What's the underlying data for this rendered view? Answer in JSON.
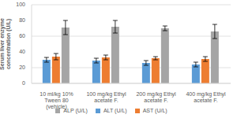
{
  "chart_data": {
    "type": "bar",
    "y_label": "Serum liver enzyme concentration (U/L)",
    "categories": [
      "10 ml/kg 10% Tween 80 (vehicle)",
      "100 mg/kg Ethyl acetate F.",
      "200 mg/kg Ethyl acetate F.",
      "400 mg/kg Ethyl acetate F."
    ],
    "series": [
      {
        "name": "ALT (U/L)",
        "color": "#5b9bd5",
        "values": [
          30,
          29,
          26,
          24
        ],
        "errors": [
          3,
          3,
          3,
          3
        ]
      },
      {
        "name": "AST (U/L)",
        "color": "#ed7d31",
        "values": [
          34,
          33,
          32,
          31
        ],
        "errors": [
          4,
          3,
          2,
          3
        ]
      },
      {
        "name": "ALP (U/L)",
        "color": "#a5a5a5",
        "values": [
          71,
          72,
          70,
          66
        ],
        "errors": [
          9,
          8,
          3,
          9
        ]
      }
    ],
    "ylim": [
      0,
      100
    ],
    "yticks": [
      0,
      20,
      40,
      60,
      80,
      100
    ],
    "grid": true,
    "legend": "bottom"
  }
}
